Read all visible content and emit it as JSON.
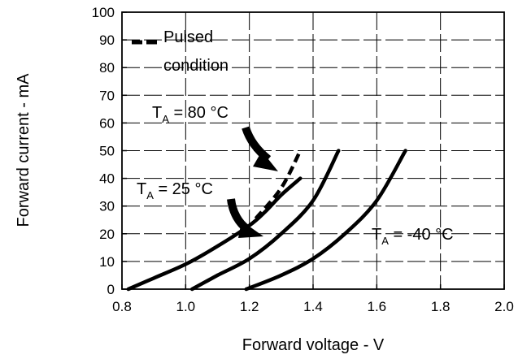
{
  "chart_data": {
    "type": "line",
    "xlabel": "Forward voltage - V",
    "ylabel": "Forward current - mA",
    "xlim": [
      0.8,
      2.0
    ],
    "ylim": [
      0,
      100
    ],
    "x_ticks": [
      "0.8",
      "1.0",
      "1.2",
      "1.4",
      "1.6",
      "1.8",
      "2.0"
    ],
    "y_ticks": [
      "0",
      "10",
      "20",
      "30",
      "40",
      "50",
      "60",
      "70",
      "80",
      "90",
      "100"
    ],
    "x_tick_values": [
      0.8,
      1.0,
      1.2,
      1.4,
      1.6,
      1.8,
      2.0
    ],
    "y_tick_values": [
      0,
      10,
      20,
      30,
      40,
      50,
      60,
      70,
      80,
      90,
      100
    ],
    "grid": true,
    "legend": {
      "line1": "Pulsed",
      "line2": "condition",
      "style": "dashed"
    },
    "annotations": [
      {
        "main": "T",
        "sub": "A",
        "text": " = 80 °C"
      },
      {
        "main": "T",
        "sub": "A",
        "text": " = 25 °C"
      },
      {
        "main": "T",
        "sub": "A",
        "text": " = -40 °C"
      }
    ],
    "series": [
      {
        "points": [
          [
            0.82,
            0
          ],
          [
            0.9,
            4
          ],
          [
            1.0,
            9
          ],
          [
            1.1,
            15.5
          ],
          [
            1.2,
            23
          ],
          [
            1.25,
            28
          ],
          [
            1.3,
            34
          ],
          [
            1.36,
            40
          ]
        ],
        "dashed_points": [
          [
            1.22,
            25.5
          ],
          [
            1.3,
            36.5
          ],
          [
            1.36,
            50
          ]
        ]
      },
      {
        "points": [
          [
            1.02,
            0
          ],
          [
            1.1,
            5
          ],
          [
            1.2,
            11
          ],
          [
            1.3,
            20
          ],
          [
            1.4,
            32
          ],
          [
            1.48,
            50
          ]
        ]
      },
      {
        "points": [
          [
            1.19,
            0
          ],
          [
            1.3,
            5
          ],
          [
            1.4,
            11
          ],
          [
            1.5,
            20
          ],
          [
            1.6,
            32
          ],
          [
            1.69,
            50
          ]
        ]
      }
    ]
  }
}
